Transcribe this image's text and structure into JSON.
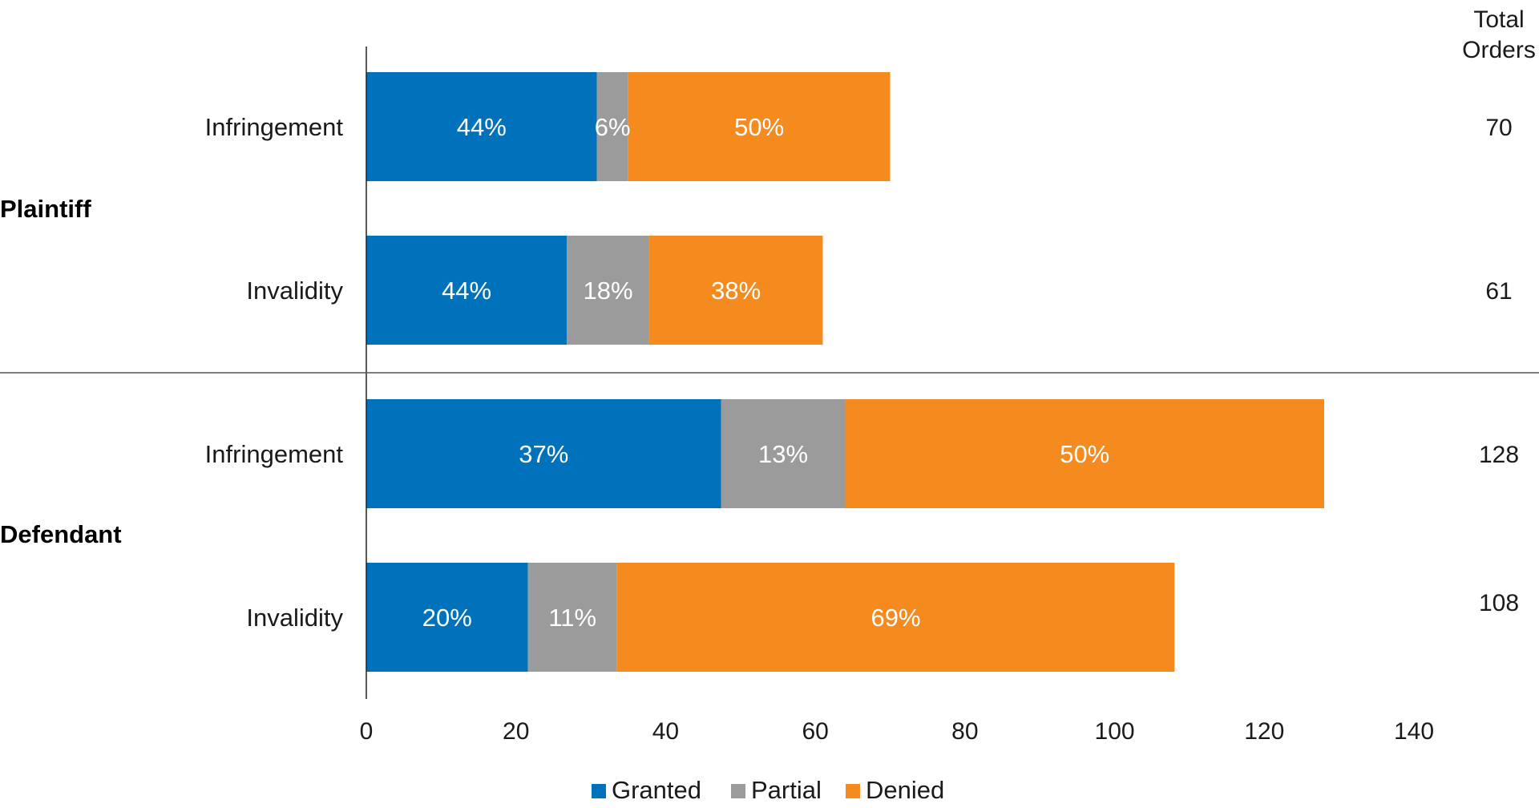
{
  "chart_data": {
    "type": "bar",
    "orientation": "horizontal",
    "stacked": true,
    "xlim": [
      0,
      140
    ],
    "xticks": [
      0,
      20,
      40,
      60,
      80,
      100,
      120,
      140
    ],
    "grid": false,
    "legend_position": "bottom",
    "total_header": [
      "Total",
      "Orders"
    ],
    "groups": [
      {
        "name": "Plaintiff",
        "categories": [
          "Infringement",
          "Invalidity"
        ]
      },
      {
        "name": "Defendant",
        "categories": [
          "Infringement",
          "Invalidity"
        ]
      }
    ],
    "rows": [
      {
        "group": "Plaintiff",
        "category": "Infringement",
        "total": 70,
        "values": [
          30.8,
          4.2,
          35
        ],
        "labels": [
          "44%",
          "6%",
          "50%"
        ]
      },
      {
        "group": "Plaintiff",
        "category": "Invalidity",
        "total": 61,
        "values": [
          26.8,
          11,
          23.2
        ],
        "labels": [
          "44%",
          "18%",
          "38%"
        ]
      },
      {
        "group": "Defendant",
        "category": "Infringement",
        "total": 128,
        "values": [
          47.4,
          16.6,
          64
        ],
        "labels": [
          "37%",
          "13%",
          "50%"
        ]
      },
      {
        "group": "Defendant",
        "category": "Invalidity",
        "total": 108,
        "values": [
          21.6,
          11.9,
          74.5
        ],
        "labels": [
          "20%",
          "11%",
          "69%"
        ]
      }
    ],
    "series": [
      {
        "name": "Granted",
        "color": "#0072bc"
      },
      {
        "name": "Partial",
        "color": "#9b9b9b"
      },
      {
        "name": "Denied",
        "color": "#f58a1f"
      }
    ]
  }
}
